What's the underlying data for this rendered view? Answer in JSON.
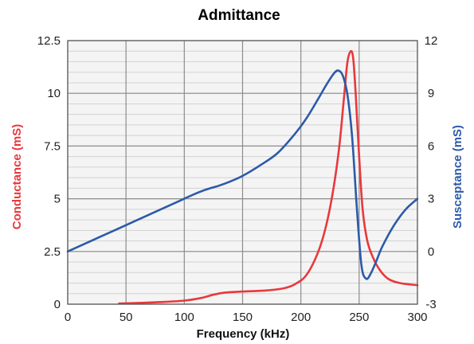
{
  "colors": {
    "conductance": "#e8383d",
    "susceptance": "#2c5aa8",
    "plot_background": "#f4f4f4",
    "major_grid": "#8c8c8c",
    "minor_grid": "#d2d2d2"
  },
  "chart_data": {
    "type": "line",
    "title": "Admittance",
    "xlabel": "Frequency (kHz)",
    "ylabel": "Conductance (mS)",
    "y2label": "Susceptance (mS)",
    "xlim": [
      0,
      300
    ],
    "ylim": [
      0,
      12.5
    ],
    "y2lim": [
      -3,
      12
    ],
    "grid": true,
    "legend": "none",
    "x_ticks": [
      "0",
      "50",
      "100",
      "150",
      "200",
      "250",
      "300"
    ],
    "y_ticks": [
      "0",
      "2.5",
      "5",
      "7.5",
      "10",
      "12.5"
    ],
    "y2_ticks": [
      "-3",
      "0",
      "3",
      "6",
      "9",
      "12"
    ],
    "series": [
      {
        "axis": "left",
        "x": [
          44,
          60,
          80,
          100,
          115,
          125,
          135,
          150,
          170,
          185,
          195,
          205,
          215,
          222,
          228,
          233,
          237,
          240,
          243,
          245,
          247,
          250,
          253,
          257,
          262,
          268,
          275,
          285,
          300
        ],
        "values": [
          0.03,
          0.06,
          0.1,
          0.17,
          0.3,
          0.45,
          0.55,
          0.6,
          0.65,
          0.75,
          0.95,
          1.4,
          2.5,
          3.8,
          5.5,
          7.5,
          9.8,
          11.5,
          12.0,
          11.6,
          10.0,
          7.0,
          4.5,
          3.0,
          2.2,
          1.6,
          1.2,
          1.0,
          0.9
        ]
      },
      {
        "axis": "right",
        "x": [
          0,
          30,
          60,
          90,
          110,
          120,
          130,
          140,
          150,
          165,
          180,
          195,
          205,
          215,
          222,
          228,
          232,
          236,
          240,
          244,
          248,
          252,
          256,
          260,
          265,
          270,
          280,
          290,
          300
        ],
        "values": [
          0,
          0.9,
          1.8,
          2.7,
          3.3,
          3.55,
          3.75,
          4.0,
          4.3,
          4.9,
          5.6,
          6.7,
          7.6,
          8.7,
          9.5,
          10.1,
          10.3,
          10.0,
          8.9,
          6.5,
          2.5,
          -0.8,
          -1.55,
          -1.25,
          -0.5,
          0.3,
          1.5,
          2.4,
          3.0
        ]
      }
    ]
  }
}
